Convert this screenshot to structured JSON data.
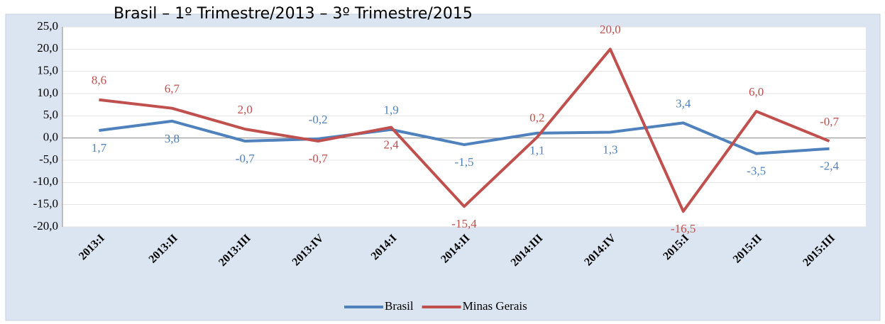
{
  "chart_data": {
    "type": "line",
    "title": "Brasil – 1º Trimestre/2013 – 3º Trimestre/2015",
    "categories": [
      "2013:I",
      "2013:II",
      "2013:III",
      "2013:IV",
      "2014:I",
      "2014:II",
      "2014:III",
      "2014:IV",
      "2015:I",
      "2015:II",
      "2015:III"
    ],
    "series": [
      {
        "name": "Brasil",
        "color": "#4f81bd",
        "values": [
          1.7,
          3.8,
          -0.7,
          -0.2,
          1.9,
          -1.5,
          1.1,
          1.3,
          3.4,
          -3.5,
          -2.4
        ],
        "value_labels": [
          "1,7",
          "3,8",
          "-0,7",
          "-0,2",
          "1,9",
          "-1,5",
          "1,1",
          "1,3",
          "3,4",
          "-3,5",
          "-2,4"
        ]
      },
      {
        "name": "Minas Gerais",
        "color": "#c0504d",
        "values": [
          8.6,
          6.7,
          2.0,
          -0.7,
          2.4,
          -15.4,
          0.2,
          20.0,
          -16.5,
          6.0,
          -0.7
        ],
        "value_labels": [
          "8,6",
          "6,7",
          "2,0",
          "-0,7",
          "2,4",
          "-15,4",
          "0,2",
          "20,0",
          "-16,5",
          "6,0",
          "-0,7"
        ]
      }
    ],
    "ylim": [
      -20,
      25
    ],
    "yticks": [
      {
        "value": -20,
        "label": "-20,0"
      },
      {
        "value": -15,
        "label": "-15,0"
      },
      {
        "value": -10,
        "label": "-10,0"
      },
      {
        "value": -5,
        "label": "-5,0"
      },
      {
        "value": 0,
        "label": "0,0"
      },
      {
        "value": 5,
        "label": "5,0"
      },
      {
        "value": 10,
        "label": "10,0"
      },
      {
        "value": 15,
        "label": "15,0"
      },
      {
        "value": 20,
        "label": "20,0"
      },
      {
        "value": 25,
        "label": "25,0"
      }
    ],
    "grid": true,
    "legend": "bottom"
  }
}
